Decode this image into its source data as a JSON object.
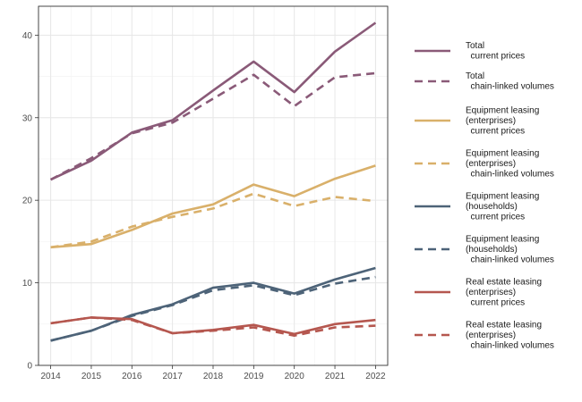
{
  "chart_data": {
    "type": "line",
    "title": "",
    "xlabel": "",
    "ylabel": "",
    "x": [
      2014,
      2015,
      2016,
      2017,
      2018,
      2019,
      2020,
      2021,
      2022
    ],
    "xlim": [
      2013.7,
      2022.3
    ],
    "ylim": [
      0,
      43.5
    ],
    "yticks": [
      0,
      10,
      20,
      30,
      40
    ],
    "grid": true,
    "legend_position": "right",
    "series": [
      {
        "name": "Total\n  current prices",
        "color": "#8a5a78",
        "dash": "solid",
        "values": [
          22.5,
          24.8,
          28.2,
          29.7,
          33.3,
          36.8,
          33.1,
          38.0,
          41.5
        ]
      },
      {
        "name": "Total\n  chain-linked volumes",
        "color": "#8a5a78",
        "dash": "dashed",
        "values": [
          22.5,
          25.1,
          28.1,
          29.4,
          32.3,
          35.2,
          31.4,
          34.9,
          35.4
        ]
      },
      {
        "name": "Equipment leasing\n(enterprises)\n  current prices",
        "color": "#d9b06a",
        "dash": "solid",
        "values": [
          14.3,
          14.7,
          16.4,
          18.4,
          19.5,
          21.9,
          20.5,
          22.6,
          24.2
        ]
      },
      {
        "name": "Equipment leasing\n(enterprises)\n  chain-linked volumes",
        "color": "#d9b06a",
        "dash": "dashed",
        "values": [
          14.3,
          15.0,
          16.8,
          18.0,
          19.0,
          20.8,
          19.3,
          20.4,
          19.9
        ]
      },
      {
        "name": "Equipment leasing\n(households)\n  current prices",
        "color": "#4d6378",
        "dash": "solid",
        "values": [
          3.0,
          4.2,
          6.1,
          7.4,
          9.4,
          10.0,
          8.7,
          10.4,
          11.8
        ]
      },
      {
        "name": "Equipment leasing\n(households)\n  chain-linked volumes",
        "color": "#4d6378",
        "dash": "dashed",
        "values": [
          3.0,
          4.2,
          6.0,
          7.3,
          9.1,
          9.7,
          8.5,
          9.9,
          10.7
        ]
      },
      {
        "name": "Real estate leasing\n(enterprises)\n  current prices",
        "color": "#b5574f",
        "dash": "solid",
        "values": [
          5.1,
          5.8,
          5.6,
          3.9,
          4.3,
          4.9,
          3.8,
          5.0,
          5.5
        ]
      },
      {
        "name": "Real estate leasing\n(enterprises)\n  chain-linked volumes",
        "color": "#b5574f",
        "dash": "dashed",
        "values": [
          5.1,
          5.8,
          5.5,
          3.9,
          4.2,
          4.6,
          3.6,
          4.6,
          4.8
        ]
      }
    ]
  }
}
